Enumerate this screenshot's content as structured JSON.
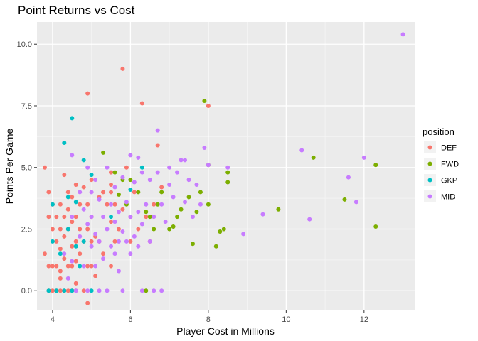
{
  "chart_data": {
    "type": "scatter",
    "title": "Point Returns vs Cost",
    "xlabel": "Player Cost in Millions",
    "ylabel": "Points Per Game",
    "xlim": [
      3.6,
      13.3
    ],
    "ylim": [
      -0.8,
      10.9
    ],
    "x_ticks": [
      4,
      6,
      8,
      10,
      12
    ],
    "x_tick_labels": [
      "4",
      "6",
      "8",
      "10",
      "12"
    ],
    "y_ticks": [
      0,
      2.5,
      5,
      7.5,
      10
    ],
    "y_tick_labels": [
      "0.0",
      "2.5",
      "5.0",
      "7.5",
      "10.0"
    ],
    "grid": true,
    "legend_title": "position",
    "legend_position": "right",
    "series": [
      {
        "name": "DEF",
        "color": "#F8766D",
        "points": [
          [
            3.8,
            5.0
          ],
          [
            3.8,
            1.5
          ],
          [
            3.9,
            4.0
          ],
          [
            3.9,
            3.0
          ],
          [
            3.9,
            1.0
          ],
          [
            3.9,
            0.0
          ],
          [
            4.0,
            3.5
          ],
          [
            4.0,
            2.5
          ],
          [
            4.0,
            1.0
          ],
          [
            4.0,
            0.0
          ],
          [
            4.1,
            3.0
          ],
          [
            4.1,
            2.0
          ],
          [
            4.1,
            1.0
          ],
          [
            4.1,
            0.0
          ],
          [
            4.2,
            3.5
          ],
          [
            4.2,
            2.5
          ],
          [
            4.2,
            1.7
          ],
          [
            4.2,
            0.8
          ],
          [
            4.2,
            0.5
          ],
          [
            4.2,
            0.0
          ],
          [
            4.3,
            4.7
          ],
          [
            4.3,
            3.0
          ],
          [
            4.3,
            2.2
          ],
          [
            4.3,
            1.3
          ],
          [
            4.3,
            0.0
          ],
          [
            4.4,
            4.0
          ],
          [
            4.4,
            3.3
          ],
          [
            4.4,
            2.5
          ],
          [
            4.4,
            1.0
          ],
          [
            4.4,
            0.0
          ],
          [
            4.5,
            3.8
          ],
          [
            4.5,
            2.8
          ],
          [
            4.5,
            1.8
          ],
          [
            4.5,
            1.0
          ],
          [
            4.5,
            0.0
          ],
          [
            4.6,
            4.3
          ],
          [
            4.6,
            3.0
          ],
          [
            4.6,
            2.0
          ],
          [
            4.6,
            1.2
          ],
          [
            4.6,
            0.3
          ],
          [
            4.6,
            0.0
          ],
          [
            4.7,
            3.5
          ],
          [
            4.7,
            2.5
          ],
          [
            4.7,
            1.5
          ],
          [
            4.8,
            4.2
          ],
          [
            4.8,
            2.0
          ],
          [
            4.8,
            0.0
          ],
          [
            4.9,
            8.0
          ],
          [
            4.9,
            3.5
          ],
          [
            4.9,
            2.5
          ],
          [
            4.9,
            1.0
          ],
          [
            4.9,
            -0.5
          ],
          [
            5.0,
            4.5
          ],
          [
            5.0,
            3.0
          ],
          [
            5.0,
            2.0
          ],
          [
            5.0,
            1.0
          ],
          [
            5.1,
            2.2
          ],
          [
            5.1,
            0.6
          ],
          [
            5.2,
            3.8
          ],
          [
            5.2,
            2.0
          ],
          [
            5.3,
            4.0
          ],
          [
            5.3,
            1.5
          ],
          [
            5.4,
            3.5
          ],
          [
            5.5,
            4.8
          ],
          [
            5.5,
            4.3
          ],
          [
            5.5,
            4.0
          ],
          [
            5.5,
            2.8
          ],
          [
            5.5,
            1.0
          ],
          [
            5.6,
            3.5
          ],
          [
            5.6,
            2.0
          ],
          [
            5.7,
            2.5
          ],
          [
            5.8,
            9.0
          ],
          [
            5.8,
            3.3
          ],
          [
            5.9,
            5.0
          ],
          [
            6.0,
            3.0
          ],
          [
            6.0,
            2.0
          ],
          [
            6.1,
            4.0
          ],
          [
            6.2,
            2.5
          ],
          [
            6.3,
            7.6
          ],
          [
            6.4,
            3.0
          ],
          [
            6.5,
            2.0
          ],
          [
            6.6,
            3.5
          ],
          [
            6.7,
            5.9
          ],
          [
            6.8,
            4.2
          ],
          [
            8.0,
            7.5
          ]
        ]
      },
      {
        "name": "FWD",
        "color": "#7CAE00",
        "points": [
          [
            5.3,
            5.6
          ],
          [
            5.6,
            4.8
          ],
          [
            5.7,
            3.9
          ],
          [
            5.8,
            4.5
          ],
          [
            5.9,
            3.5
          ],
          [
            6.0,
            4.5
          ],
          [
            6.2,
            4.0
          ],
          [
            6.4,
            3.2
          ],
          [
            6.5,
            3.0
          ],
          [
            6.6,
            2.5
          ],
          [
            6.7,
            3.5
          ],
          [
            6.8,
            4.0
          ],
          [
            7.0,
            2.5
          ],
          [
            7.1,
            2.6
          ],
          [
            7.2,
            3.0
          ],
          [
            7.3,
            3.3
          ],
          [
            7.5,
            3.8
          ],
          [
            7.6,
            1.9
          ],
          [
            7.7,
            3.2
          ],
          [
            7.8,
            4.0
          ],
          [
            7.9,
            7.7
          ],
          [
            8.0,
            3.5
          ],
          [
            8.0,
            5.1
          ],
          [
            8.2,
            1.8
          ],
          [
            8.3,
            2.4
          ],
          [
            8.4,
            2.5
          ],
          [
            8.5,
            4.4
          ],
          [
            8.5,
            4.8
          ],
          [
            9.8,
            3.3
          ],
          [
            10.7,
            5.4
          ],
          [
            11.5,
            3.7
          ],
          [
            12.3,
            5.1
          ],
          [
            12.3,
            2.6
          ],
          [
            6.4,
            0.0
          ]
        ]
      },
      {
        "name": "GKP",
        "color": "#00BFC4",
        "points": [
          [
            3.9,
            0.0
          ],
          [
            4.0,
            2.0
          ],
          [
            4.0,
            3.5
          ],
          [
            4.1,
            0.0
          ],
          [
            4.2,
            1.5
          ],
          [
            4.3,
            6.0
          ],
          [
            4.3,
            0.0
          ],
          [
            4.4,
            3.8
          ],
          [
            4.4,
            2.5
          ],
          [
            4.5,
            7.0
          ],
          [
            4.5,
            0.0
          ],
          [
            4.6,
            3.6
          ],
          [
            4.6,
            1.8
          ],
          [
            4.7,
            1.0
          ],
          [
            4.8,
            5.3
          ],
          [
            4.8,
            2.0
          ],
          [
            5.0,
            4.7
          ],
          [
            5.0,
            0.0
          ],
          [
            5.5,
            3.0
          ],
          [
            6.0,
            4.1
          ],
          [
            6.3,
            5.0
          ]
        ]
      },
      {
        "name": "MID",
        "color": "#C77CFF",
        "points": [
          [
            4.3,
            1.5
          ],
          [
            4.4,
            0.5
          ],
          [
            4.5,
            5.5
          ],
          [
            4.5,
            3.0
          ],
          [
            4.5,
            1.2
          ],
          [
            4.6,
            0.0
          ],
          [
            4.7,
            4.0
          ],
          [
            4.7,
            2.2
          ],
          [
            4.8,
            3.3
          ],
          [
            4.8,
            1.0
          ],
          [
            4.9,
            5.0
          ],
          [
            4.9,
            2.7
          ],
          [
            4.9,
            0.0
          ],
          [
            5.0,
            4.0
          ],
          [
            5.0,
            3.0
          ],
          [
            5.0,
            1.8
          ],
          [
            5.1,
            4.5
          ],
          [
            5.1,
            2.3
          ],
          [
            5.1,
            1.0
          ],
          [
            5.2,
            3.7
          ],
          [
            5.2,
            2.0
          ],
          [
            5.2,
            0.0
          ],
          [
            5.3,
            3.0
          ],
          [
            5.3,
            1.3
          ],
          [
            5.4,
            5.0
          ],
          [
            5.4,
            2.5
          ],
          [
            5.4,
            0.0
          ],
          [
            5.5,
            3.5
          ],
          [
            5.5,
            1.8
          ],
          [
            5.6,
            4.2
          ],
          [
            5.6,
            2.8
          ],
          [
            5.6,
            1.5
          ],
          [
            5.7,
            3.2
          ],
          [
            5.7,
            2.0
          ],
          [
            5.7,
            0.8
          ],
          [
            5.8,
            4.6
          ],
          [
            5.8,
            2.4
          ],
          [
            5.8,
            0.0
          ],
          [
            5.9,
            3.6
          ],
          [
            5.9,
            2.0
          ],
          [
            6.0,
            5.5
          ],
          [
            6.0,
            3.0
          ],
          [
            6.0,
            1.5
          ],
          [
            6.1,
            4.4
          ],
          [
            6.1,
            2.2
          ],
          [
            6.2,
            5.4
          ],
          [
            6.2,
            3.2
          ],
          [
            6.2,
            1.8
          ],
          [
            6.3,
            4.8
          ],
          [
            6.3,
            2.7
          ],
          [
            6.3,
            0.0
          ],
          [
            6.4,
            3.5
          ],
          [
            6.5,
            4.5
          ],
          [
            6.5,
            2.0
          ],
          [
            6.6,
            3.0
          ],
          [
            6.6,
            0.0
          ],
          [
            6.7,
            6.5
          ],
          [
            6.7,
            4.8
          ],
          [
            6.8,
            3.5
          ],
          [
            6.8,
            0.0
          ],
          [
            6.9,
            2.8
          ],
          [
            7.0,
            4.3
          ],
          [
            7.0,
            5.0
          ],
          [
            7.1,
            3.8
          ],
          [
            7.2,
            4.8
          ],
          [
            7.3,
            5.3
          ],
          [
            7.4,
            3.6
          ],
          [
            7.4,
            5.3
          ],
          [
            7.5,
            4.5
          ],
          [
            7.6,
            3.0
          ],
          [
            7.7,
            4.3
          ],
          [
            7.8,
            3.5
          ],
          [
            7.9,
            5.8
          ],
          [
            8.0,
            5.1
          ],
          [
            8.5,
            5.0
          ],
          [
            8.9,
            2.3
          ],
          [
            9.4,
            3.1
          ],
          [
            10.4,
            5.7
          ],
          [
            10.6,
            2.9
          ],
          [
            11.6,
            4.6
          ],
          [
            11.8,
            3.6
          ],
          [
            12.0,
            5.4
          ],
          [
            13.0,
            10.4
          ]
        ]
      }
    ]
  }
}
